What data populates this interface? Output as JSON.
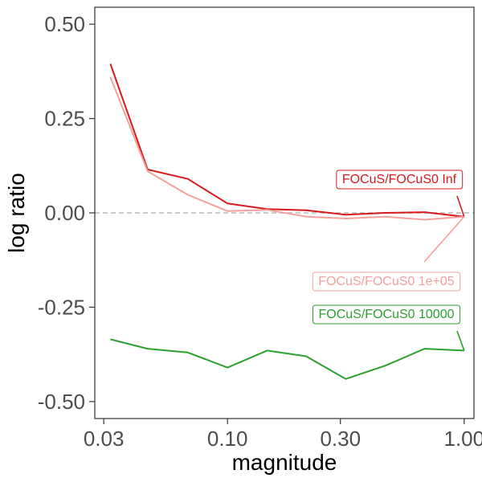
{
  "chart_data": {
    "type": "line",
    "title": "",
    "xlabel": "magnitude",
    "ylabel": "log ratio",
    "x_scale": "log",
    "xlim": [
      0.0275,
      1.1
    ],
    "ylim": [
      -0.545,
      0.545
    ],
    "x_ticks": [
      0.03,
      0.1,
      0.3,
      1.0
    ],
    "x_tick_labels": [
      "0.03",
      "0.10",
      "0.30",
      "1.00"
    ],
    "y_ticks": [
      0.5,
      0.25,
      0.0,
      -0.25,
      -0.5
    ],
    "y_tick_labels": [
      "0.50",
      "0.25",
      "0.00",
      "-0.25",
      "-0.50"
    ],
    "reference_line": {
      "y": 0,
      "style": "dashed",
      "color": "#c8c8c8"
    },
    "grid": false,
    "legend": "none",
    "x": [
      0.032,
      0.046,
      0.068,
      0.1,
      0.147,
      0.215,
      0.316,
      0.464,
      0.681,
      1.0
    ],
    "series": [
      {
        "name": "FOCuS/FOCuS0 Inf",
        "color": "#d7191c",
        "values": [
          0.395,
          0.115,
          0.09,
          0.025,
          0.01,
          0.007,
          -0.005,
          0.0,
          0.002,
          -0.01
        ]
      },
      {
        "name": "FOCuS/FOCuS0 1e+05",
        "color": "#f4a09c",
        "values": [
          0.36,
          0.11,
          0.048,
          0.005,
          0.008,
          -0.01,
          -0.015,
          -0.01,
          -0.018,
          -0.01
        ]
      },
      {
        "name": "FOCuS/FOCuS0 10000",
        "color": "#2ca02c",
        "values": [
          -0.335,
          -0.36,
          -0.37,
          -0.41,
          -0.365,
          -0.38,
          -0.44,
          -0.405,
          -0.36,
          -0.365
        ]
      }
    ]
  }
}
